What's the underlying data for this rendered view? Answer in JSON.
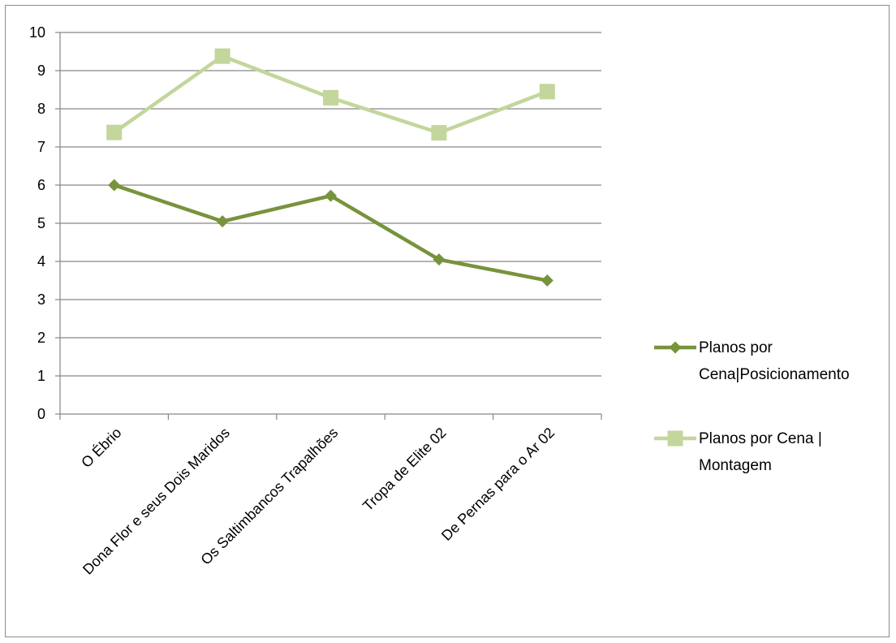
{
  "chart_data": {
    "type": "line",
    "title": "",
    "xlabel": "",
    "ylabel": "",
    "categories": [
      "O Ébrio",
      "Dona Flor e seus Dois Maridos",
      "Os Saltimbancos Trapalhões",
      "Tropa de Elite 02",
      "De Pernas para o Ar 02"
    ],
    "ylim": [
      0,
      10
    ],
    "yticks": [
      "0",
      "1",
      "2",
      "3",
      "4",
      "5",
      "6",
      "7",
      "8",
      "9",
      "10"
    ],
    "grid": true,
    "legend_position": "right",
    "series": [
      {
        "name": "Planos por Cena|Posicionamento",
        "legend_lines": [
          "Planos por",
          "Cena|Posicionamento"
        ],
        "values": [
          6.0,
          5.05,
          5.72,
          4.05,
          3.5
        ],
        "color": "#77933c",
        "marker": "diamond"
      },
      {
        "name": "Planos por Cena | Montagem",
        "legend_lines": [
          "Planos por Cena |",
          "Montagem"
        ],
        "values": [
          7.38,
          9.38,
          8.29,
          7.37,
          8.45
        ],
        "color": "#c3d69b",
        "marker": "square"
      }
    ]
  }
}
